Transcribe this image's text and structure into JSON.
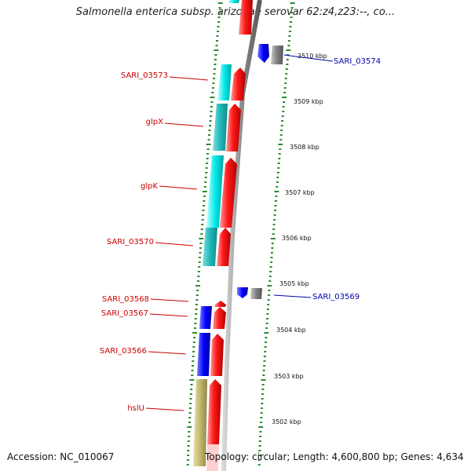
{
  "title": "Salmonella enterica subsp. arizonae serovar 62:z4,z23:--, co...",
  "footer": {
    "accession": "Accession: NC_010067",
    "topology": "Topology: circular; Length: 4,600,800 bp; Genes: 4,634"
  },
  "colors": {
    "forward_strand": "#ff0000",
    "reverse_cyan": "#00e5e5",
    "reverse_blue": "#0000ff",
    "reverse_olive": "#c2b76e",
    "other_gray": "#777777",
    "tick": "#2e8b2e",
    "label_red": "#cc0000",
    "label_blue": "#0000aa"
  },
  "scale_labels": [
    "3510 kbp",
    "3509 kbp",
    "3508 kbp",
    "3507 kbp",
    "3506 kbp",
    "3505 kbp",
    "3504 kbp",
    "3503 kbp",
    "3502 kbp"
  ],
  "gene_labels": [
    {
      "text": "SARI_03574",
      "color": "blue"
    },
    {
      "text": "SARI_03573",
      "color": "red"
    },
    {
      "text": "glpX",
      "color": "red"
    },
    {
      "text": "glpK",
      "color": "red"
    },
    {
      "text": "SARI_03570",
      "color": "red"
    },
    {
      "text": "SARI_03569",
      "color": "blue"
    },
    {
      "text": "SARI_03568",
      "color": "red"
    },
    {
      "text": "SARI_03567",
      "color": "red"
    },
    {
      "text": "SARI_03566",
      "color": "red"
    },
    {
      "text": "hslU",
      "color": "red"
    }
  ]
}
